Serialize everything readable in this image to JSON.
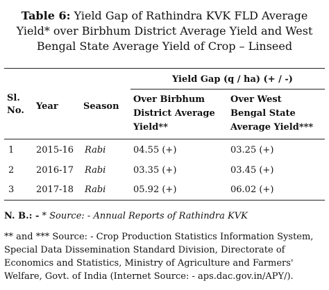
{
  "table": {
    "title_label": "Table 6:",
    "title_line1": " Yield Gap of Rathindra KVK FLD Average",
    "title_line2": "Yield* over Birbhum District Average Yield and West",
    "title_line3": "Bengal State Average Yield of Crop – Linseed",
    "group_header": "Yield Gap (q / ha) (+ / -)",
    "columns": {
      "sl_line1": "Sl.",
      "sl_line2": "No.",
      "year": "Year",
      "season": "Season",
      "birbhum_line1": "Over Birbhum",
      "birbhum_line2": "District Average",
      "birbhum_line3": "Yield**",
      "westbengal_line1": "Over West",
      "westbengal_line2": "Bengal State",
      "westbengal_line3": "Average Yield***"
    },
    "rows": [
      {
        "sl": "1",
        "year": "2015-16",
        "season": "Rabi",
        "birbhum": "04.55 (+)",
        "westbengal": "03.25 (+)"
      },
      {
        "sl": "2",
        "year": "2016-17",
        "season": "Rabi",
        "birbhum": "03.35 (+)",
        "westbengal": "03.45 (+)"
      },
      {
        "sl": "3",
        "year": "2017-18",
        "season": "Rabi",
        "birbhum": "05.92 (+)",
        "westbengal": "06.02 (+)"
      }
    ]
  },
  "notes": {
    "nb_label": "N. B.: -",
    "nb_text": " * Source: - Annual Reports of Rathindra KVK",
    "source2_line1": "** and *** Source: - Crop Production Statistics Information System,",
    "source2_line2": "Special Data Dissemination Standard Division, Directorate of",
    "source2_line3": "Economics and Statistics, Ministry of Agriculture and Farmers'",
    "source2_line4": "Welfare, Govt. of India (Internet Source: - aps.dac.gov.in/APY/)."
  }
}
